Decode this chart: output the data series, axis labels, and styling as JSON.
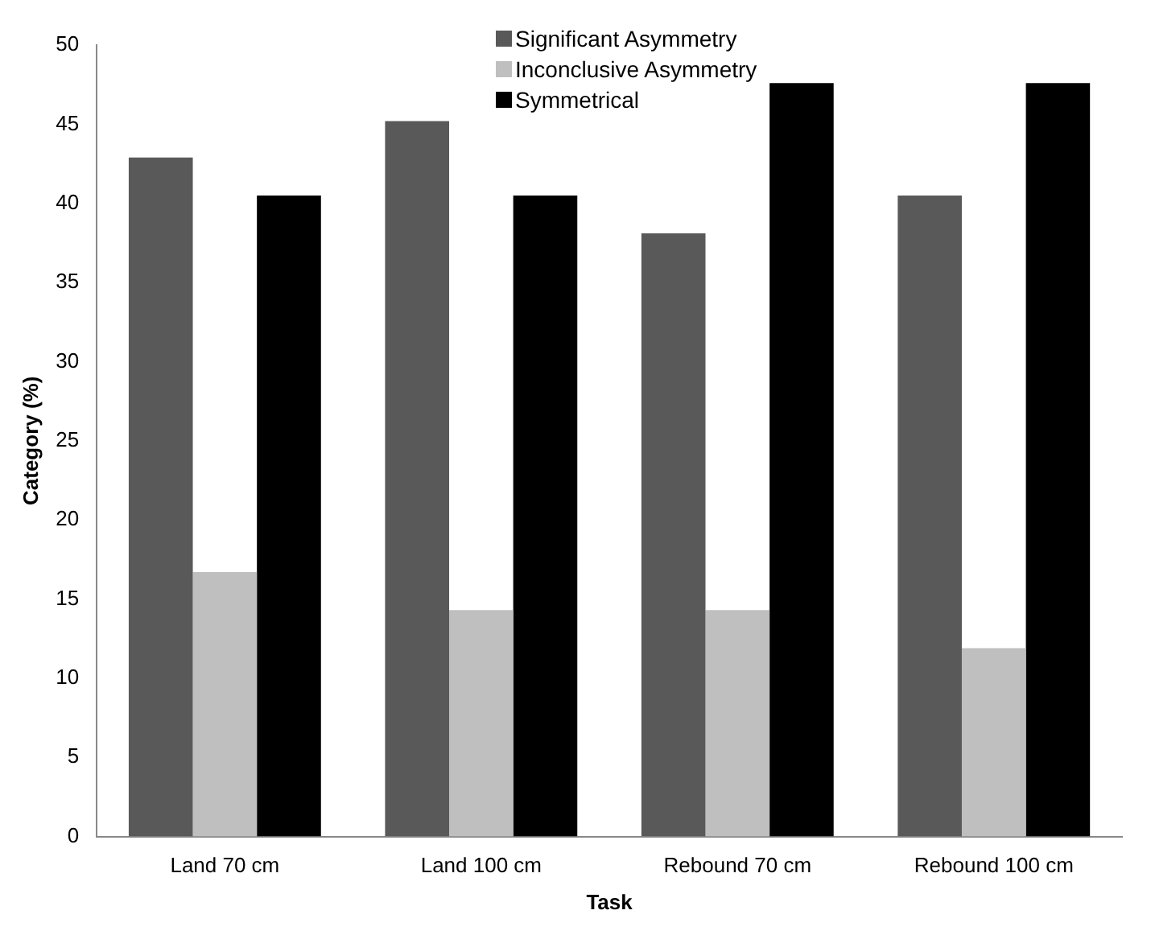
{
  "chart_data": {
    "type": "bar",
    "xlabel": "Task",
    "ylabel": "Category (%)",
    "categories": [
      "Land 70 cm",
      "Land 100 cm",
      "Rebound 70 cm",
      "Rebound 100 cm"
    ],
    "series": [
      {
        "name": "Significant Asymmetry",
        "color": "#595959",
        "values": [
          42.9,
          45.2,
          38.1,
          40.5
        ]
      },
      {
        "name": "Inconclusive Asymmetry",
        "color": "#bfbfbf",
        "values": [
          16.7,
          14.3,
          14.3,
          11.9
        ]
      },
      {
        "name": "Symmetrical",
        "color": "#000000",
        "values": [
          40.5,
          40.5,
          47.6,
          47.6
        ]
      }
    ],
    "ylim": [
      0,
      50
    ],
    "yticks": [
      0,
      5,
      10,
      15,
      20,
      25,
      30,
      35,
      40,
      45,
      50
    ],
    "grid": false,
    "legend": "top"
  }
}
